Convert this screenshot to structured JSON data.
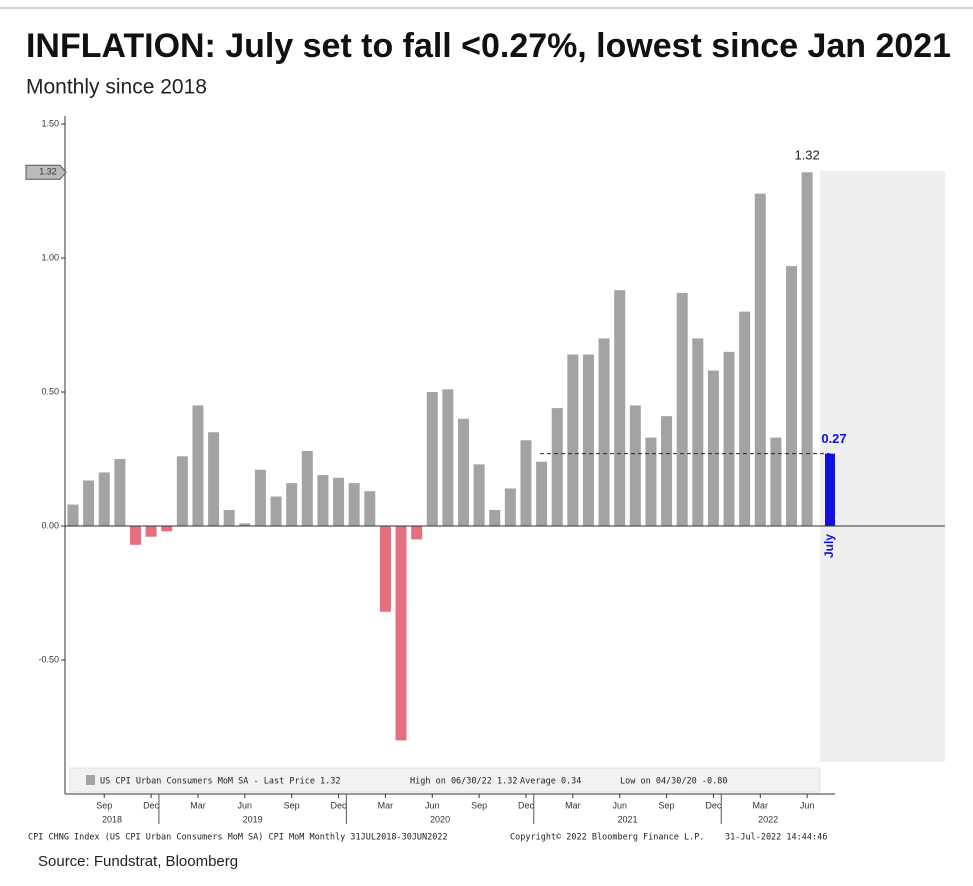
{
  "chart_data": {
    "type": "bar",
    "title": "INFLATION: July set to fall <0.27%, lowest since Jan 2021",
    "subtitle": "Monthly since 2018",
    "categories": [
      null,
      null,
      "Sep",
      null,
      null,
      "Dec",
      null,
      null,
      "Mar",
      null,
      null,
      "Jun",
      null,
      null,
      "Sep",
      null,
      null,
      "Dec",
      null,
      null,
      "Mar",
      null,
      null,
      "Jun",
      null,
      null,
      "Sep",
      null,
      null,
      "Dec",
      null,
      null,
      "Mar",
      null,
      null,
      "Jun",
      null,
      null,
      "Sep",
      null,
      null,
      "Dec",
      null,
      null,
      "Mar",
      null,
      null,
      "Jun"
    ],
    "years": [
      "2018",
      "2019",
      "2020",
      "2021",
      "2022"
    ],
    "values": [
      0.08,
      0.17,
      0.2,
      0.25,
      -0.07,
      -0.04,
      -0.02,
      0.26,
      0.45,
      0.35,
      0.06,
      0.01,
      0.21,
      0.11,
      0.16,
      0.28,
      0.19,
      0.18,
      0.16,
      0.13,
      -0.32,
      -0.8,
      -0.05,
      0.5,
      0.51,
      0.4,
      0.23,
      0.06,
      0.14,
      0.32,
      0.24,
      0.44,
      0.64,
      0.64,
      0.7,
      0.88,
      0.45,
      0.33,
      0.41,
      0.87,
      0.7,
      0.58,
      0.65,
      0.8,
      1.24,
      0.33,
      0.97,
      1.32
    ],
    "color": "#a3a3a3",
    "negative_color": "#e4707f",
    "forecast": {
      "name": "July",
      "value": 0.27,
      "color": "#1010e0"
    },
    "ylim": [
      -1.0,
      1.53
    ],
    "yticks": [
      {
        "value": -0.5,
        "label": "-0.50"
      },
      {
        "value": 0,
        "label": "0.00"
      },
      {
        "value": 0.5,
        "label": "0.50"
      },
      {
        "value": 1,
        "label": "1.00"
      },
      {
        "value": 1.5,
        "label": "1.50"
      }
    ],
    "legend": [
      "US CPI Urban Consumers MoM SA - Last Price 1.32",
      "High on 06/30/22 1.32",
      "Average 0.34",
      "Low on 04/30/20 -0.80"
    ],
    "footer": [
      "CPI CHNG Index (US CPI Urban Consumers MoM SA) CPI MoM  Monthly 31JUL2018-30JUN2022",
      "Copyright© 2022 Bloomberg Finance L.P.",
      "31-Jul-2022 14:44:46"
    ],
    "source": "Source: Fundstrat, Bloomberg"
  }
}
